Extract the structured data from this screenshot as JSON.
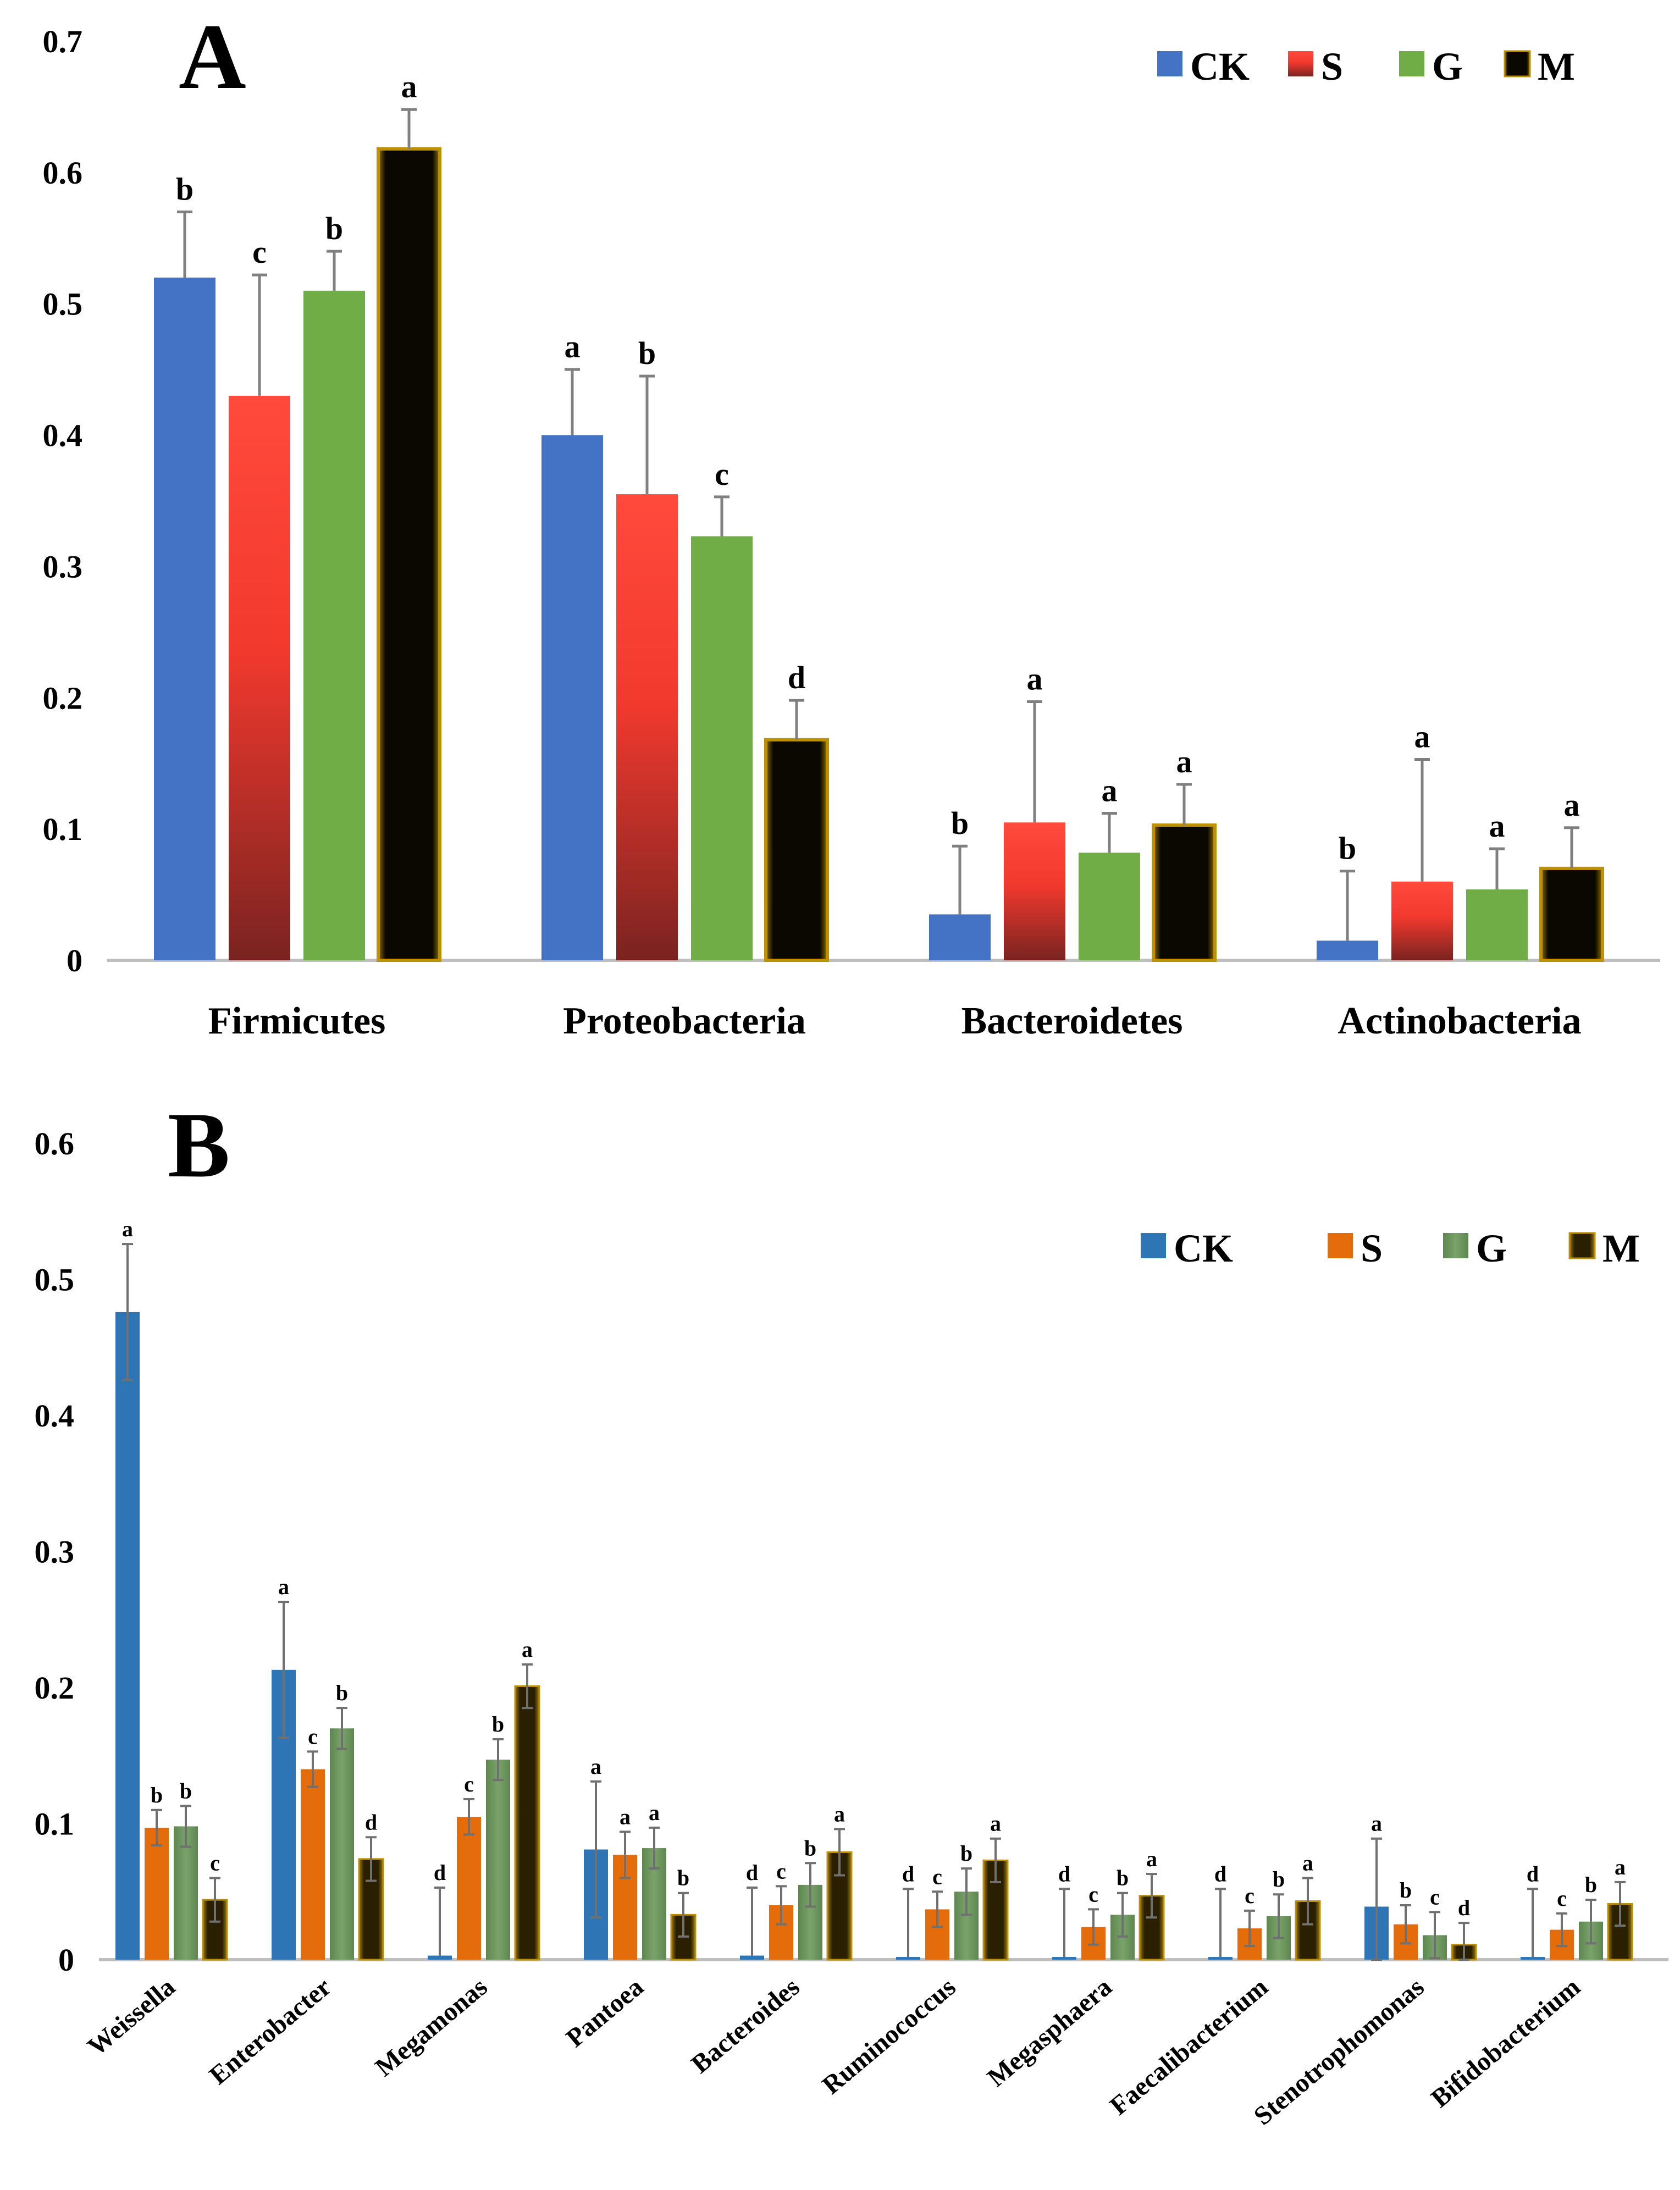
{
  "chart_data": [
    {
      "type": "bar",
      "panel_label": "A",
      "title": "",
      "xlabel": "",
      "ylabel": "",
      "ylim": [
        0,
        0.7
      ],
      "yticks": [
        "0",
        "0.1",
        "0.2",
        "0.3",
        "0.4",
        "0.5",
        "0.6",
        "0.7"
      ],
      "grid": false,
      "legend_position": "top-right",
      "categories": [
        "Firmicutes",
        "Proteobacteria",
        "Bacteroidetes",
        "Actinobacteria"
      ],
      "series": [
        {
          "name": "CK",
          "color": "#4472c4",
          "values": [
            0.52,
            0.4,
            0.035,
            0.015
          ],
          "errors": [
            0.05,
            0.05,
            0.052,
            0.053
          ],
          "sig": [
            "b",
            "a",
            "b",
            "b"
          ]
        },
        {
          "name": "S",
          "color": "#ff4136",
          "values": [
            0.43,
            0.355,
            0.105,
            0.06
          ],
          "errors": [
            0.092,
            0.09,
            0.092,
            0.093
          ],
          "sig": [
            "c",
            "b",
            "a",
            "a"
          ]
        },
        {
          "name": "G",
          "color": "#70ad47",
          "values": [
            0.51,
            0.323,
            0.082,
            0.054
          ],
          "errors": [
            0.03,
            0.03,
            0.03,
            0.031
          ],
          "sig": [
            "b",
            "c",
            "a",
            "a"
          ]
        },
        {
          "name": "M",
          "color": "#000000",
          "values": [
            0.618,
            0.168,
            0.103,
            0.07
          ],
          "errors": [
            0.03,
            0.03,
            0.031,
            0.031
          ],
          "sig": [
            "a",
            "d",
            "a",
            "a"
          ]
        }
      ]
    },
    {
      "type": "bar",
      "panel_label": "B",
      "title": "",
      "xlabel": "",
      "ylabel": "",
      "ylim": [
        0,
        0.6
      ],
      "yticks": [
        "0",
        "0.1",
        "0.2",
        "0.3",
        "0.4",
        "0.5",
        "0.6"
      ],
      "grid": false,
      "legend_position": "top-right",
      "categories": [
        "Weissella",
        "Enterobacter",
        "Megamonas",
        "Pantoea",
        "Bacteroides",
        "Ruminococcus",
        "Megasphaera",
        "Faecalibacterium",
        "Stenotrophomonas",
        "Bifidobacterium"
      ],
      "series": [
        {
          "name": "CK",
          "color": "#2e75b6",
          "values": [
            0.476,
            0.213,
            0.003,
            0.081,
            0.003,
            0.002,
            0.002,
            0.002,
            0.039,
            0.002
          ],
          "errors": [
            0.05,
            0.05,
            0.05,
            0.05,
            0.05,
            0.05,
            0.05,
            0.05,
            0.05,
            0.05
          ],
          "sig": [
            "a",
            "a",
            "d",
            "a",
            "d",
            "d",
            "d",
            "d",
            "a",
            "d"
          ]
        },
        {
          "name": "S",
          "color": "#e46c0a",
          "values": [
            0.097,
            0.14,
            0.105,
            0.077,
            0.04,
            0.037,
            0.024,
            0.023,
            0.026,
            0.022
          ],
          "errors": [
            0.013,
            0.013,
            0.013,
            0.017,
            0.014,
            0.013,
            0.013,
            0.013,
            0.014,
            0.012
          ],
          "sig": [
            "b",
            "c",
            "c",
            "a",
            "c",
            "c",
            "c",
            "c",
            "b",
            "c"
          ]
        },
        {
          "name": "G",
          "color": "#6f9760",
          "values": [
            0.098,
            0.17,
            0.147,
            0.082,
            0.055,
            0.05,
            0.033,
            0.032,
            0.018,
            0.028
          ],
          "errors": [
            0.015,
            0.015,
            0.015,
            0.015,
            0.016,
            0.017,
            0.016,
            0.016,
            0.017,
            0.016
          ],
          "sig": [
            "b",
            "b",
            "b",
            "a",
            "b",
            "b",
            "b",
            "b",
            "c",
            "b"
          ]
        },
        {
          "name": "M",
          "color": "#000000",
          "values": [
            0.044,
            0.074,
            0.201,
            0.033,
            0.079,
            0.073,
            0.047,
            0.043,
            0.011,
            0.041
          ],
          "errors": [
            0.016,
            0.016,
            0.016,
            0.016,
            0.017,
            0.016,
            0.016,
            0.017,
            0.016,
            0.016
          ],
          "sig": [
            "c",
            "d",
            "a",
            "b",
            "a",
            "a",
            "a",
            "a",
            "d",
            "a"
          ]
        }
      ]
    }
  ]
}
